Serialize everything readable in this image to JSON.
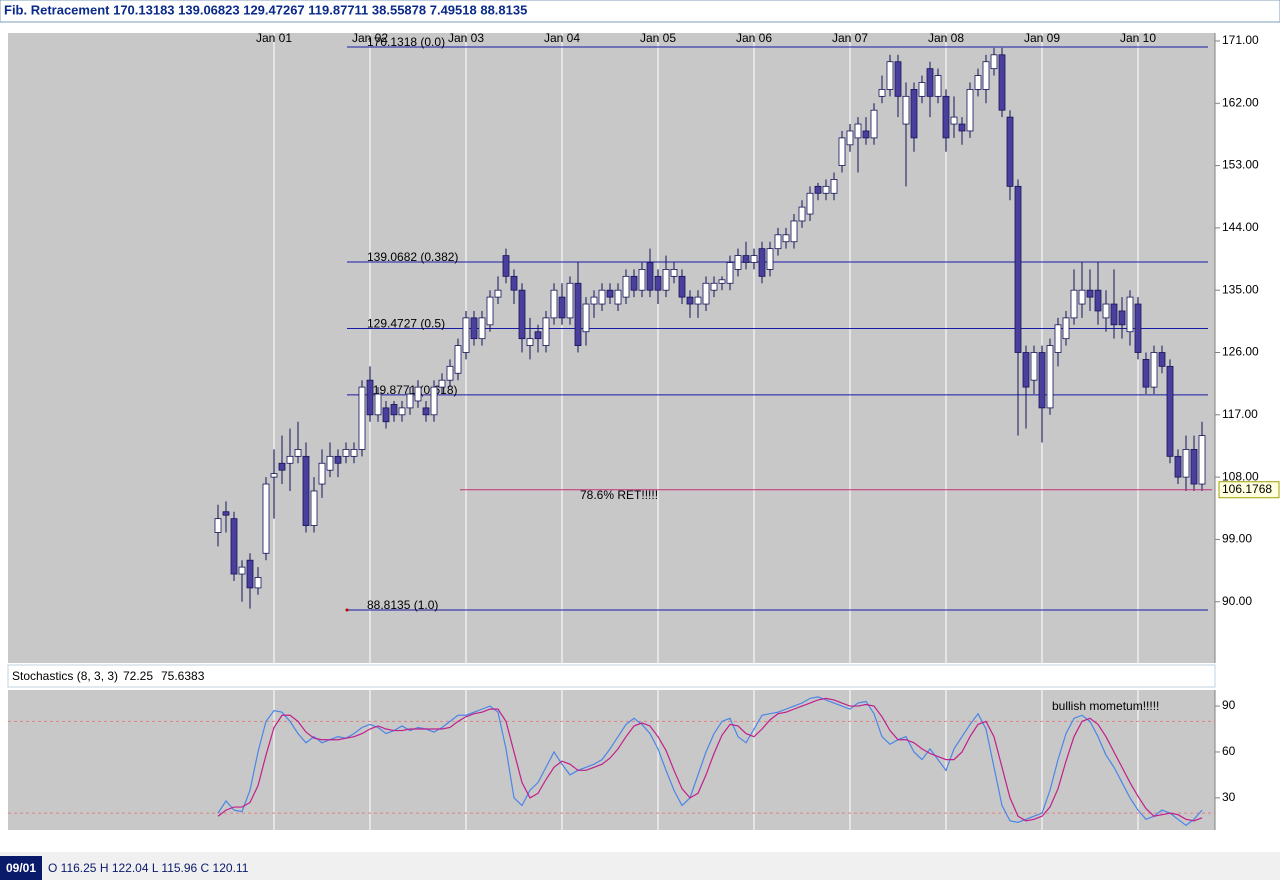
{
  "title": "Fib. Retracement 170.13183 139.06823 129.47267 119.87711 38.55878 7.49518 88.8135",
  "chart_data": [
    {
      "type": "candlestick",
      "categories": [
        null,
        null,
        null,
        null,
        null,
        null,
        null,
        "Jan 01",
        null,
        null,
        null,
        null,
        null,
        null,
        null,
        null,
        null,
        null,
        null,
        "Jan 02",
        null,
        null,
        null,
        null,
        null,
        null,
        null,
        null,
        null,
        null,
        null,
        "Jan 03",
        null,
        null,
        null,
        null,
        null,
        null,
        null,
        null,
        null,
        null,
        null,
        "Jan 04",
        null,
        null,
        null,
        null,
        null,
        null,
        null,
        null,
        null,
        null,
        null,
        "Jan 05",
        null,
        null,
        null,
        null,
        null,
        null,
        null,
        null,
        null,
        null,
        null,
        "Jan 06",
        null,
        null,
        null,
        null,
        null,
        null,
        null,
        null,
        null,
        null,
        null,
        "Jan 07",
        null,
        null,
        null,
        null,
        null,
        null,
        null,
        null,
        null,
        null,
        null,
        "Jan 08",
        null,
        null,
        null,
        null,
        null,
        null,
        null,
        null,
        null,
        null,
        null,
        "Jan 09",
        null,
        null,
        null,
        null,
        null,
        null,
        null,
        null,
        null,
        null,
        null,
        "Jan 10",
        null,
        null,
        null,
        null,
        null,
        null,
        null,
        null
      ],
      "open": [
        100,
        103,
        102,
        94,
        96,
        92,
        97,
        108,
        110,
        110,
        111,
        111,
        101,
        107,
        109,
        111,
        111,
        111,
        112,
        122,
        117,
        118,
        118.5,
        117,
        118,
        119,
        118,
        117,
        121,
        122,
        123,
        126,
        131,
        128,
        130,
        134,
        140,
        137,
        135,
        127,
        129,
        127,
        131,
        134,
        131,
        136,
        129,
        133,
        133,
        135,
        133,
        134,
        137,
        135,
        139,
        137,
        135,
        137,
        137,
        134,
        133,
        133,
        135,
        136,
        136,
        138,
        140,
        139,
        141,
        138,
        141,
        142,
        142,
        145,
        146,
        150,
        149,
        149,
        153,
        156,
        157,
        158,
        157,
        163,
        164,
        168,
        159,
        164,
        163,
        167,
        163,
        163,
        159,
        159,
        158,
        164,
        164,
        167,
        169,
        160,
        150,
        126,
        122,
        126,
        118,
        126,
        128,
        131,
        133,
        135,
        135,
        131,
        133,
        132,
        129,
        133,
        125,
        121,
        126,
        124,
        111,
        108,
        112,
        107
      ],
      "high": [
        104,
        104.5,
        103,
        96,
        97,
        95,
        108,
        112,
        114,
        115,
        116,
        113,
        108,
        112,
        113,
        112,
        113,
        113,
        122,
        124,
        121,
        119,
        119,
        119,
        121,
        122,
        119,
        122,
        123,
        125,
        128,
        132,
        132,
        132,
        135,
        137,
        141,
        138,
        136,
        131,
        130,
        132,
        136,
        136,
        137,
        139,
        134,
        135,
        136,
        136,
        136,
        138,
        138,
        139,
        141,
        138,
        140,
        139,
        138,
        135,
        135,
        137,
        137,
        137,
        140,
        141,
        142,
        141,
        142,
        142,
        144,
        144,
        146,
        148,
        150,
        150.5,
        151,
        152,
        158,
        159,
        160,
        160,
        162,
        166,
        169,
        169,
        165,
        165,
        166,
        168,
        167,
        164,
        163,
        160,
        165,
        167,
        169,
        170,
        170,
        161,
        151,
        127,
        127,
        127,
        128,
        131,
        132,
        138,
        139,
        138,
        139,
        135,
        138,
        134,
        135,
        134,
        126,
        127,
        127,
        125,
        112,
        114,
        114,
        116
      ],
      "low": [
        98,
        100,
        93,
        90,
        89,
        91,
        96,
        102,
        107,
        106,
        110,
        100,
        100,
        105,
        108,
        108,
        110,
        110,
        111,
        116,
        116,
        115,
        116,
        116,
        117,
        118,
        116,
        116,
        120,
        121,
        122,
        125,
        127,
        127,
        129,
        133,
        136,
        133,
        126,
        125,
        126,
        126,
        130,
        130,
        130,
        126,
        127,
        131,
        132,
        133,
        132,
        133,
        134,
        134,
        134,
        133,
        134,
        136,
        133,
        131,
        131,
        132,
        134,
        135,
        135,
        137,
        138,
        138,
        136,
        137,
        140,
        141,
        141,
        144,
        145,
        148,
        148,
        148,
        152,
        155,
        152,
        156,
        156,
        162,
        163,
        160,
        150,
        155,
        162,
        160,
        162,
        155,
        157,
        156,
        157,
        163,
        162,
        166,
        160,
        148,
        114,
        115,
        120,
        113,
        117,
        124,
        127,
        130,
        131,
        132,
        130,
        129,
        128,
        128,
        127,
        125,
        120,
        120,
        123,
        110,
        107,
        106,
        106,
        106
      ],
      "close": [
        102,
        102.5,
        94,
        95,
        92,
        93.5,
        107,
        108.5,
        109,
        111,
        112,
        101,
        106,
        110,
        111,
        110,
        112,
        112,
        121,
        117,
        120,
        116,
        117,
        118,
        120,
        121,
        117,
        121,
        122,
        124,
        127,
        131,
        128,
        131,
        134,
        135,
        137,
        135,
        128,
        128,
        128,
        131,
        135,
        131,
        136,
        127,
        133,
        134,
        135,
        134,
        135,
        137,
        135,
        138,
        135,
        135,
        138,
        138,
        134,
        133,
        134,
        136,
        136,
        136.5,
        139,
        140,
        139,
        140,
        137,
        141,
        143,
        143,
        145,
        147,
        149,
        149,
        150,
        151,
        157,
        158,
        159,
        157,
        161,
        164,
        168,
        163,
        163,
        157,
        165,
        163,
        166,
        157,
        160,
        158,
        164,
        166,
        168,
        169,
        161,
        150,
        126,
        121,
        126,
        118,
        127,
        130,
        131,
        135,
        135,
        134,
        132,
        133,
        130,
        130,
        134,
        126,
        121,
        126,
        124,
        111,
        108,
        112,
        107,
        114
      ],
      "ylim": [
        81.15,
        172.15
      ],
      "yticks": [
        {
          "value": 90,
          "label": "90.00"
        },
        {
          "value": 99,
          "label": "99.00"
        },
        {
          "value": 108,
          "label": "108.00"
        },
        {
          "value": 117,
          "label": "117.00"
        },
        {
          "value": 126,
          "label": "126.00"
        },
        {
          "value": 135,
          "label": "135.00"
        },
        {
          "value": 144,
          "label": "144.00"
        },
        {
          "value": 153,
          "label": "153.00"
        },
        {
          "value": 162,
          "label": "162.00"
        },
        {
          "value": 171,
          "label": "171.00"
        }
      ],
      "up_color": "#ffffff",
      "down_color": "#4b3f9e",
      "outline_color": "#14145a",
      "fib_color": "#1a1aa8",
      "fib_levels": [
        {
          "value": 170.1318,
          "label": "170.1318 (0.0)"
        },
        {
          "value": 139.0682,
          "label": "139.0682 (0.382)"
        },
        {
          "value": 129.4727,
          "label": "129.4727 (0.5)"
        },
        {
          "value": 119.8771,
          "label": "119.8771 (0.618)"
        },
        {
          "value": 88.8135,
          "label": "88.8135 (1.0)"
        }
      ],
      "retracement": {
        "value": 106.1768,
        "label": "78.6% RET!!!!!",
        "price_tag": "106.1768",
        "color": "#c8307a"
      }
    },
    {
      "type": "line",
      "title": "Stochastics (8, 3, 3)",
      "ylim": [
        9,
        100.5
      ],
      "yticks": [
        30,
        60,
        90
      ],
      "levels": [
        80,
        20
      ],
      "level_color": "#e08080",
      "annotation": "bullish mometum!!!!!",
      "series": [
        {
          "legend_value": "72.25",
          "color": "#4a86e8",
          "values": [
            20,
            28,
            22,
            21,
            35,
            60,
            80,
            87,
            86,
            80,
            72,
            66,
            70,
            66,
            68,
            70,
            69,
            72,
            76,
            78,
            76,
            72,
            74,
            77,
            74,
            76,
            75,
            73,
            76,
            80,
            84,
            84,
            86,
            88,
            90,
            86,
            62,
            30,
            25,
            35,
            40,
            50,
            60,
            52,
            45,
            48,
            50,
            52,
            55,
            62,
            70,
            78,
            82,
            78,
            72,
            62,
            48,
            35,
            25,
            30,
            45,
            60,
            72,
            80,
            82,
            70,
            66,
            75,
            84,
            85,
            86,
            88,
            90,
            92,
            95,
            96,
            94,
            92,
            90,
            88,
            92,
            93,
            85,
            70,
            65,
            68,
            70,
            60,
            55,
            62,
            55,
            48,
            62,
            70,
            78,
            85,
            75,
            50,
            25,
            15,
            14,
            16,
            18,
            20,
            35,
            55,
            72,
            82,
            84,
            80,
            70,
            58,
            50,
            40,
            30,
            22,
            16,
            18,
            22,
            20,
            16,
            12,
            16,
            22
          ]
        },
        {
          "legend_value": "75.6383",
          "color": "#c0208a",
          "values": [
            18,
            22,
            24,
            24,
            27,
            38,
            58,
            76,
            84,
            84,
            80,
            73,
            69,
            68,
            68,
            68,
            69,
            70,
            72,
            75,
            77,
            75,
            74,
            74,
            75,
            75,
            75,
            75,
            75,
            76,
            80,
            83,
            85,
            86,
            88,
            88,
            80,
            60,
            40,
            30,
            33,
            42,
            50,
            54,
            52,
            48,
            48,
            50,
            52,
            56,
            62,
            70,
            77,
            79,
            77,
            70,
            61,
            48,
            36,
            30,
            33,
            45,
            59,
            71,
            78,
            77,
            72,
            70,
            75,
            81,
            85,
            86,
            88,
            90,
            92,
            94,
            95,
            94,
            92,
            90,
            90,
            91,
            90,
            83,
            74,
            68,
            68,
            66,
            62,
            59,
            57,
            55,
            55,
            60,
            70,
            78,
            80,
            70,
            50,
            30,
            18,
            15,
            16,
            18,
            24,
            36,
            54,
            70,
            80,
            82,
            78,
            70,
            60,
            50,
            40,
            31,
            23,
            18,
            19,
            20,
            19,
            16,
            15,
            17
          ]
        }
      ]
    }
  ],
  "status": {
    "date": "09/01",
    "ohlc": "O 116.25 H 122.04 L 115.96 C 120.11"
  }
}
